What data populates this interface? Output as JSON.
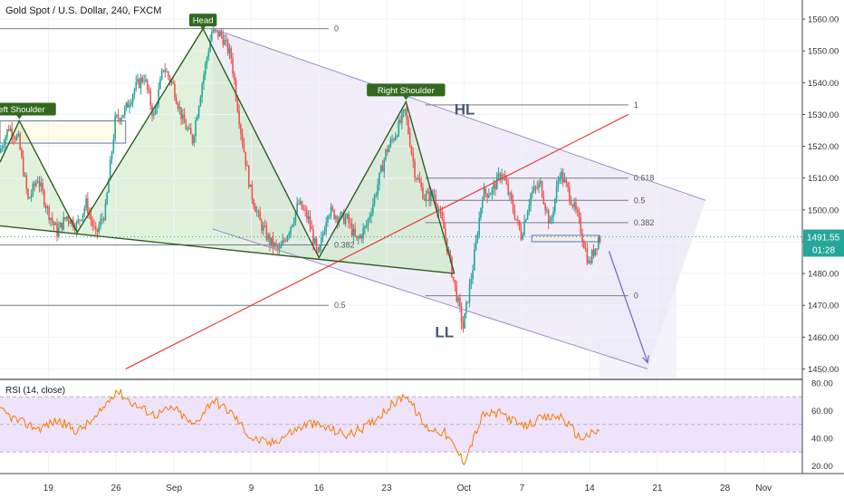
{
  "header": {
    "title": "Gold Spot / U.S. Dollar, 240, FXCM"
  },
  "rsi_panel": {
    "title": "RSI (14, close)"
  },
  "colors": {
    "up": "#26a69a",
    "down": "#ef5350",
    "pattern_line": "#2e5d1f",
    "pattern_fill": "#c9e7c0",
    "channel": "#9a8ec8",
    "channel_fill": "#ece9f7",
    "trendline": "#e53935",
    "rsi_line": "#f57c00",
    "rsi_band": "#efe2fb",
    "price_label_bg": "#26a69a",
    "arrow": "#7c6fc0"
  },
  "chart_data": [
    {
      "type": "candlestick",
      "title": "Gold Spot / U.S. Dollar, 240, FXCM",
      "xlabel": "",
      "ylabel": "",
      "ylim": [
        1447,
        1566
      ],
      "xlim": [
        "2019-08-14",
        "2019-11-05"
      ],
      "x_ticks": [
        {
          "date": "2019-08-19",
          "label": "19"
        },
        {
          "date": "2019-08-26",
          "label": "26"
        },
        {
          "date": "2019-09-01",
          "label": "Sep"
        },
        {
          "date": "2019-09-09",
          "label": "9"
        },
        {
          "date": "2019-09-16",
          "label": "16"
        },
        {
          "date": "2019-09-23",
          "label": "23"
        },
        {
          "date": "2019-10-01",
          "label": "Oct"
        },
        {
          "date": "2019-10-07",
          "label": "7"
        },
        {
          "date": "2019-10-14",
          "label": "14"
        },
        {
          "date": "2019-10-21",
          "label": "21"
        },
        {
          "date": "2019-10-28",
          "label": "28"
        },
        {
          "date": "2019-11-01",
          "label": "Nov"
        }
      ],
      "y_ticks": [
        "1450.00",
        "1460.00",
        "1470.00",
        "1480.00",
        "1490.00",
        "1500.00",
        "1510.00",
        "1520.00",
        "1530.00",
        "1540.00",
        "1550.00",
        "1560.00"
      ],
      "current_price": {
        "value": 1491.55,
        "label": "1491.55",
        "countdown": "01:28"
      },
      "price_path": [
        [
          "2019-08-14",
          1518
        ],
        [
          "2019-08-15",
          1526
        ],
        [
          "2019-08-16",
          1522
        ],
        [
          "2019-08-17",
          1503
        ],
        [
          "2019-08-18",
          1510
        ],
        [
          "2019-08-19",
          1500
        ],
        [
          "2019-08-20",
          1493
        ],
        [
          "2019-08-21",
          1498
        ],
        [
          "2019-08-22",
          1495
        ],
        [
          "2019-08-23",
          1502
        ],
        [
          "2019-08-24",
          1492
        ],
        [
          "2019-08-25",
          1500
        ],
        [
          "2019-08-26",
          1528
        ],
        [
          "2019-08-27",
          1531
        ],
        [
          "2019-08-28",
          1538
        ],
        [
          "2019-08-29",
          1542
        ],
        [
          "2019-08-30",
          1529
        ],
        [
          "2019-08-31",
          1545
        ],
        [
          "2019-09-01",
          1539
        ],
        [
          "2019-09-02",
          1528
        ],
        [
          "2019-09-03",
          1522
        ],
        [
          "2019-09-04",
          1540
        ],
        [
          "2019-09-05",
          1556
        ],
        [
          "2019-09-06",
          1555
        ],
        [
          "2019-09-07",
          1548
        ],
        [
          "2019-09-08",
          1525
        ],
        [
          "2019-09-09",
          1506
        ],
        [
          "2019-09-10",
          1496
        ],
        [
          "2019-09-11",
          1490
        ],
        [
          "2019-09-12",
          1487
        ],
        [
          "2019-09-13",
          1494
        ],
        [
          "2019-09-14",
          1502
        ],
        [
          "2019-09-15",
          1497
        ],
        [
          "2019-09-16",
          1485
        ],
        [
          "2019-09-17",
          1500
        ],
        [
          "2019-09-18",
          1498
        ],
        [
          "2019-09-19",
          1497
        ],
        [
          "2019-09-20",
          1490
        ],
        [
          "2019-09-21",
          1495
        ],
        [
          "2019-09-22",
          1506
        ],
        [
          "2019-09-23",
          1518
        ],
        [
          "2019-09-24",
          1524
        ],
        [
          "2019-09-25",
          1531
        ],
        [
          "2019-09-26",
          1512
        ],
        [
          "2019-09-27",
          1504
        ],
        [
          "2019-09-28",
          1505
        ],
        [
          "2019-09-29",
          1494
        ],
        [
          "2019-09-30",
          1478
        ],
        [
          "2019-10-01",
          1463
        ],
        [
          "2019-10-02",
          1482
        ],
        [
          "2019-10-03",
          1505
        ],
        [
          "2019-10-04",
          1506
        ],
        [
          "2019-10-05",
          1512
        ],
        [
          "2019-10-06",
          1502
        ],
        [
          "2019-10-07",
          1492
        ],
        [
          "2019-10-08",
          1505
        ],
        [
          "2019-10-09",
          1508
        ],
        [
          "2019-10-10",
          1495
        ],
        [
          "2019-10-11",
          1512
        ],
        [
          "2019-10-12",
          1505
        ],
        [
          "2019-10-13",
          1496
        ],
        [
          "2019-10-14",
          1483
        ],
        [
          "2019-10-15",
          1491
        ]
      ],
      "annotations": [
        {
          "kind": "label",
          "text": "Left Shoulder",
          "at": [
            "2019-08-16",
            1528
          ]
        },
        {
          "kind": "label",
          "text": "Head",
          "at": [
            "2019-09-04",
            1556
          ]
        },
        {
          "kind": "label",
          "text": "Right Shoulder",
          "at": [
            "2019-09-25",
            1534
          ]
        },
        {
          "kind": "text",
          "text": "HL",
          "at": [
            "2019-09-30",
            1530
          ]
        },
        {
          "kind": "text",
          "text": "LL",
          "at": [
            "2019-09-28",
            1460
          ]
        }
      ],
      "fib_levels": [
        {
          "label": "0",
          "price": 1557,
          "from": "2019-08-14",
          "to": "2019-09-17"
        },
        {
          "label": "0.382",
          "price": 1489,
          "from": "2019-08-14",
          "to": "2019-09-17"
        },
        {
          "label": "0.5",
          "price": 1470,
          "from": "2019-08-14",
          "to": "2019-09-17"
        },
        {
          "label": "1",
          "price": 1533,
          "from": "2019-09-27",
          "to": "2019-10-18"
        },
        {
          "label": "0.618",
          "price": 1510,
          "from": "2019-09-27",
          "to": "2019-10-18"
        },
        {
          "label": "0.5",
          "price": 1503,
          "from": "2019-09-27",
          "to": "2019-10-18"
        },
        {
          "label": "0.382",
          "price": 1496,
          "from": "2019-09-27",
          "to": "2019-10-18"
        },
        {
          "label": "0",
          "price": 1473,
          "from": "2019-09-27",
          "to": "2019-10-18"
        }
      ],
      "trendlines": {
        "channel_upper": [
          [
            "2019-09-05",
            1557
          ],
          [
            "2019-10-26",
            1503
          ]
        ],
        "channel_lower": [
          [
            "2019-09-05",
            1494
          ],
          [
            "2019-10-20",
            1450
          ]
        ],
        "red_trendline": [
          [
            "2019-08-27",
            1450
          ],
          [
            "2019-10-18",
            1530
          ]
        ],
        "neckline": [
          [
            "2019-08-14",
            1495
          ],
          [
            "2019-09-30",
            1480
          ]
        ],
        "projection_arrow": [
          [
            "2019-10-16",
            1487
          ],
          [
            "2019-10-20",
            1452
          ]
        ]
      },
      "pattern_points": [
        [
          "2019-08-14",
          1515
        ],
        [
          "2019-08-16",
          1528
        ],
        [
          "2019-08-22",
          1493
        ],
        [
          "2019-09-04",
          1557
        ],
        [
          "2019-09-16",
          1485
        ],
        [
          "2019-09-25",
          1534
        ],
        [
          "2019-09-30",
          1480
        ]
      ],
      "rectangles": [
        {
          "from": "2019-08-14",
          "to": "2019-08-27",
          "top": 1528,
          "bottom": 1521
        },
        {
          "from": "2019-10-08",
          "to": "2019-10-15",
          "top": 1492,
          "bottom": 1490
        }
      ]
    },
    {
      "type": "line",
      "title": "RSI (14, close)",
      "ylim": [
        15,
        82
      ],
      "y_ticks": [
        "20.00",
        "40.00",
        "60.00",
        "80.00"
      ],
      "band": [
        30,
        70
      ],
      "series": [
        {
          "values": [
            [
              "2019-08-14",
              60
            ],
            [
              "2019-08-16",
              52
            ],
            [
              "2019-08-18",
              47
            ],
            [
              "2019-08-20",
              53
            ],
            [
              "2019-08-22",
              45
            ],
            [
              "2019-08-24",
              55
            ],
            [
              "2019-08-26",
              75
            ],
            [
              "2019-08-28",
              64
            ],
            [
              "2019-08-30",
              57
            ],
            [
              "2019-09-01",
              62
            ],
            [
              "2019-09-03",
              49
            ],
            [
              "2019-09-05",
              68
            ],
            [
              "2019-09-07",
              58
            ],
            [
              "2019-09-09",
              40
            ],
            [
              "2019-09-11",
              36
            ],
            [
              "2019-09-13",
              44
            ],
            [
              "2019-09-15",
              51
            ],
            [
              "2019-09-17",
              47
            ],
            [
              "2019-09-19",
              42
            ],
            [
              "2019-09-21",
              49
            ],
            [
              "2019-09-23",
              61
            ],
            [
              "2019-09-25",
              72
            ],
            [
              "2019-09-27",
              48
            ],
            [
              "2019-09-29",
              44
            ],
            [
              "2019-10-01",
              23
            ],
            [
              "2019-10-03",
              57
            ],
            [
              "2019-10-05",
              58
            ],
            [
              "2019-10-07",
              48
            ],
            [
              "2019-10-09",
              54
            ],
            [
              "2019-10-11",
              56
            ],
            [
              "2019-10-13",
              40
            ],
            [
              "2019-10-15",
              45
            ]
          ]
        }
      ]
    }
  ]
}
